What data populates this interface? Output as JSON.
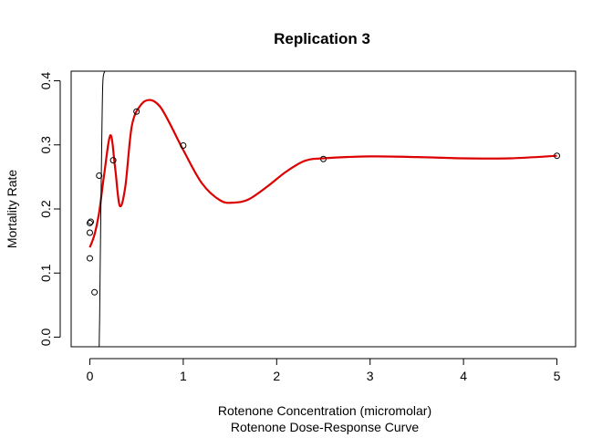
{
  "chart_data": {
    "type": "scatter",
    "title": "Replication 3",
    "xlabel": "Rotenone Concentration (micromolar)",
    "subtitle": "Rotenone Dose-Response Curve",
    "ylabel": "Mortality Rate",
    "xlim": [
      -0.2,
      5.2
    ],
    "ylim": [
      -0.015,
      0.415
    ],
    "x_ticks": [
      0,
      1,
      2,
      3,
      4,
      5
    ],
    "y_ticks": [
      0.0,
      0.1,
      0.2,
      0.3,
      0.4
    ],
    "x_tick_labels": [
      "0",
      "1",
      "2",
      "3",
      "4",
      "5"
    ],
    "y_tick_labels": [
      "0.0",
      "0.1",
      "0.2",
      "0.3",
      "0.4"
    ],
    "grid": false,
    "series": [
      {
        "type": "points",
        "x": [
          0.0,
          0.0,
          0.0,
          0.01,
          0.05,
          0.1,
          0.25,
          0.5,
          1.0,
          2.5,
          5.0
        ],
        "y": [
          0.123,
          0.163,
          0.178,
          0.18,
          0.07,
          0.252,
          0.276,
          0.352,
          0.299,
          0.278,
          0.283
        ],
        "marker": "open-circle",
        "color": "#000000"
      },
      {
        "type": "line",
        "x": [
          0.0,
          0.05,
          0.1,
          0.15,
          0.22,
          0.27,
          0.32,
          0.38,
          0.45,
          0.55,
          0.65,
          0.75,
          0.85,
          1.0,
          1.2,
          1.4,
          1.55,
          1.7,
          1.9,
          2.1,
          2.3,
          2.5,
          3.0,
          3.5,
          4.0,
          4.5,
          5.0
        ],
        "y": [
          0.14,
          0.16,
          0.195,
          0.25,
          0.315,
          0.265,
          0.205,
          0.235,
          0.33,
          0.363,
          0.37,
          0.36,
          0.335,
          0.292,
          0.24,
          0.213,
          0.21,
          0.215,
          0.235,
          0.258,
          0.275,
          0.279,
          0.282,
          0.281,
          0.279,
          0.279,
          0.283
        ],
        "color": "#dd0000"
      },
      {
        "type": "line",
        "x": [
          0.1,
          0.105,
          0.11,
          0.12,
          0.13,
          0.14,
          0.16
        ],
        "y": [
          -0.015,
          0.03,
          0.1,
          0.22,
          0.33,
          0.4,
          0.415
        ],
        "color": "#000000"
      }
    ]
  }
}
